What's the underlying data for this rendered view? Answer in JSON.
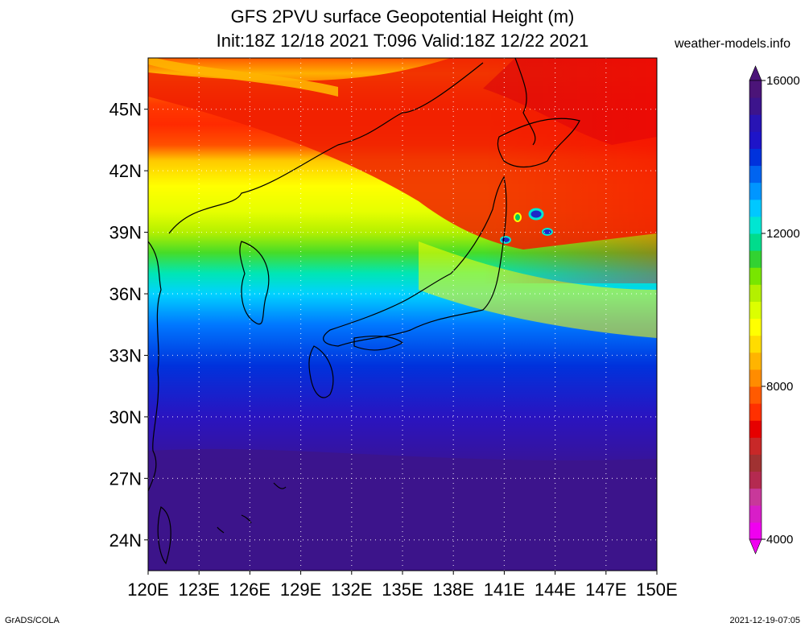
{
  "title": {
    "line1": "GFS 2PVU surface Geopotential Height (m)",
    "line2": "Init:18Z 12/18 2021 T:096 Valid:18Z 12/22 2021"
  },
  "site_label": "weather-models.info",
  "footer": {
    "left": "GrADS/COLA",
    "right": "2021-12-19-07:05"
  },
  "map": {
    "region": "East Asia / Japan",
    "lon_range": [
      120,
      150
    ],
    "lat_range": [
      22.5,
      47.5
    ],
    "lon_ticks": [
      "120E",
      "123E",
      "126E",
      "129E",
      "132E",
      "135E",
      "138E",
      "141E",
      "144E",
      "147E",
      "150E"
    ],
    "lat_ticks": [
      "24N",
      "27N",
      "30N",
      "33N",
      "36N",
      "39N",
      "42N",
      "45N"
    ],
    "gridlines": "dotted"
  },
  "colorbar": {
    "min": 4000,
    "max": 16000,
    "labels": [
      "4000",
      "8000",
      "12000",
      "16000"
    ],
    "colors": [
      "#f000f0",
      "#d81ec8",
      "#c8389a",
      "#b42a50",
      "#a03232",
      "#c82828",
      "#e60000",
      "#ff3000",
      "#ff5a00",
      "#ff8c00",
      "#ffb400",
      "#ffdc00",
      "#ffff00",
      "#dcff00",
      "#b4f000",
      "#78e600",
      "#32d232",
      "#00dc8c",
      "#00e6d2",
      "#00c8ff",
      "#0096ff",
      "#0064f0",
      "#0032dc",
      "#1e14c8",
      "#2814b4",
      "#3c148c",
      "#4b1478"
    ]
  }
}
